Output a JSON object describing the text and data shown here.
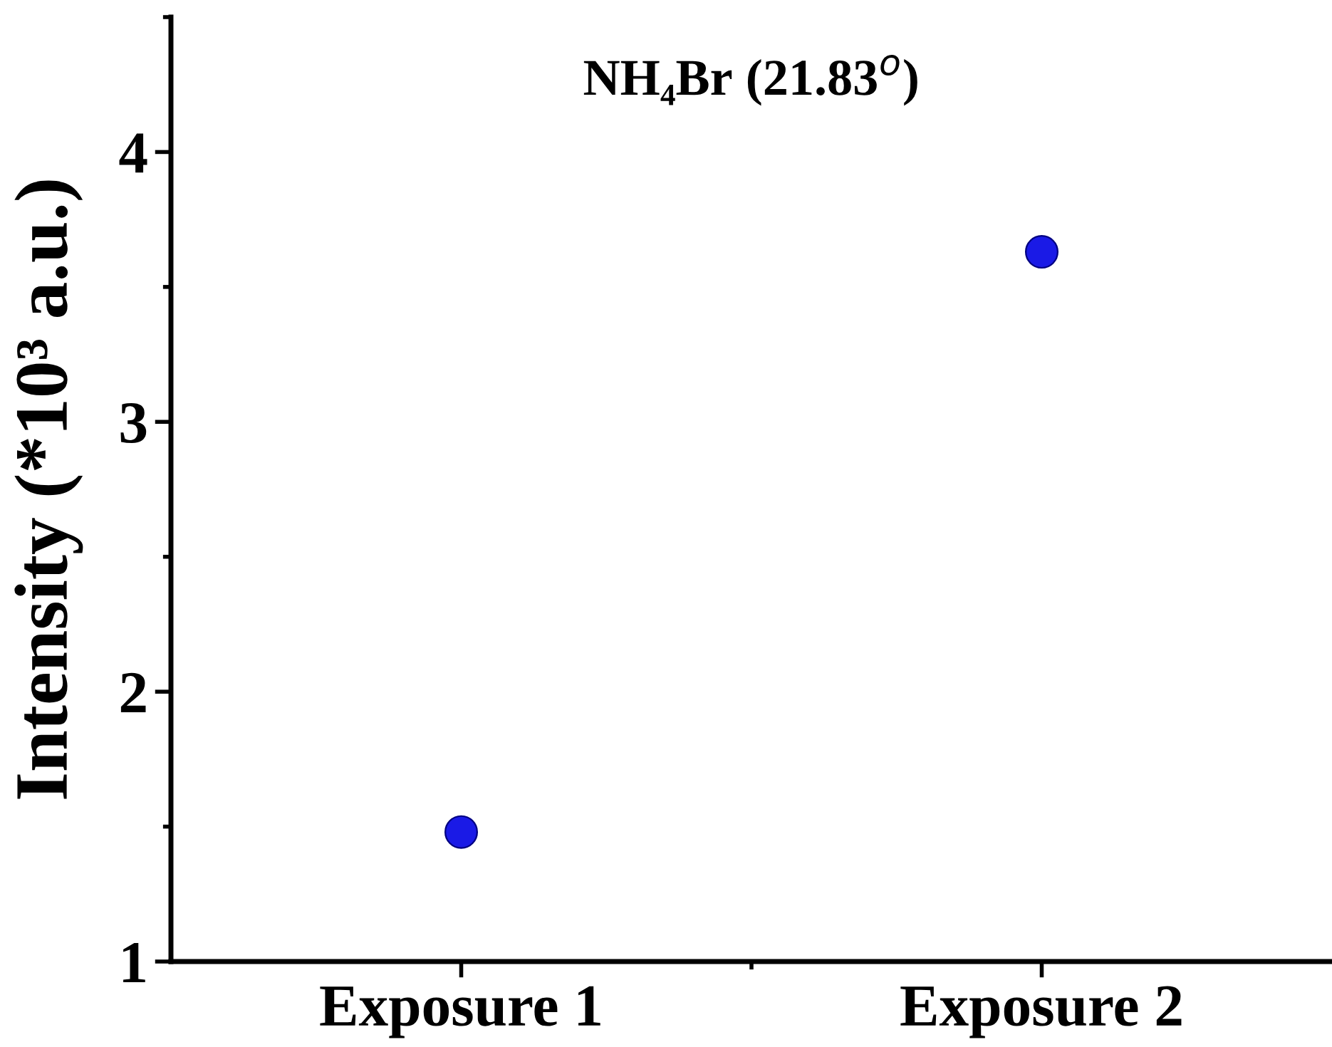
{
  "chart_data": {
    "type": "scatter",
    "title": "NH₄Br (21.83$^{o}$)",
    "ylabel": "Intensity (*10³ a.u.)",
    "categories": [
      "Exposure 1",
      "Exposure 2"
    ],
    "series": [
      {
        "color": "#1a1ae6",
        "values": [
          1.48,
          3.63
        ]
      }
    ],
    "ylim": [
      1,
      4.5
    ],
    "yticks": [
      1,
      2,
      3,
      4
    ],
    "marker": "circle",
    "grid": false,
    "legend": false
  }
}
